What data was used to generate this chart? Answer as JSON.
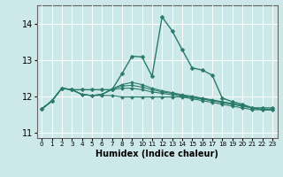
{
  "xlabel": "Humidex (Indice chaleur)",
  "xlim": [
    -0.5,
    23.5
  ],
  "ylim": [
    10.85,
    14.5
  ],
  "yticks": [
    11,
    12,
    13,
    14
  ],
  "ytick_labels": [
    "11",
    "12",
    "13",
    "14"
  ],
  "xtick_labels": [
    "0",
    "1",
    "2",
    "3",
    "4",
    "5",
    "6",
    "7",
    "8",
    "9",
    "10",
    "11",
    "12",
    "13",
    "14",
    "15",
    "16",
    "17",
    "18",
    "19",
    "20",
    "21",
    "22",
    "23"
  ],
  "background_color": "#cce8e8",
  "grid_color": "#ffffff",
  "line_color": "#2a7a6a",
  "lines": [
    [
      11.65,
      11.87,
      12.22,
      12.18,
      12.18,
      12.18,
      12.18,
      12.18,
      12.62,
      13.1,
      13.08,
      12.55,
      14.18,
      13.8,
      13.28,
      12.78,
      12.72,
      12.58,
      11.95,
      11.85,
      11.78,
      11.68,
      11.68,
      11.68
    ],
    [
      11.65,
      11.87,
      12.22,
      12.18,
      12.05,
      12.02,
      12.02,
      12.02,
      11.98,
      11.98,
      11.98,
      11.98,
      11.98,
      11.98,
      11.98,
      11.93,
      11.88,
      11.83,
      11.78,
      11.73,
      11.68,
      11.63,
      11.63,
      11.63
    ],
    [
      11.65,
      11.87,
      12.22,
      12.18,
      12.05,
      12.02,
      12.05,
      12.18,
      12.22,
      12.22,
      12.18,
      12.12,
      12.08,
      12.04,
      12.0,
      11.96,
      11.92,
      11.88,
      11.83,
      11.78,
      11.73,
      11.68,
      11.63,
      11.63
    ],
    [
      11.65,
      11.87,
      12.22,
      12.18,
      12.05,
      12.02,
      12.05,
      12.2,
      12.28,
      12.3,
      12.25,
      12.18,
      12.12,
      12.08,
      12.02,
      11.98,
      11.93,
      11.88,
      11.83,
      11.78,
      11.73,
      11.68,
      11.63,
      11.63
    ],
    [
      11.65,
      11.87,
      12.22,
      12.18,
      12.05,
      12.02,
      12.05,
      12.2,
      12.32,
      12.38,
      12.32,
      12.22,
      12.15,
      12.1,
      12.04,
      12.0,
      11.95,
      11.9,
      11.85,
      11.8,
      11.75,
      11.68,
      11.63,
      11.63
    ]
  ]
}
